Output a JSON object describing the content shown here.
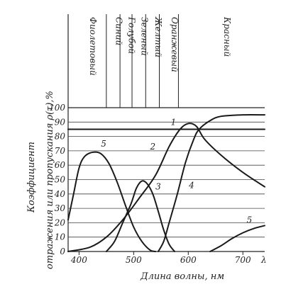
{
  "chart_data": {
    "type": "line",
    "xlabel": "Длина волны, нм",
    "ylabel_line1": "Коэффициент",
    "ylabel_line2": "отражения или пропускания ρ(τ),%",
    "x_end_label": "λ",
    "xlim": [
      380,
      740
    ],
    "ylim": [
      0,
      100
    ],
    "xticks": [
      {
        "value": 400,
        "label": "400"
      },
      {
        "value": 500,
        "label": "500"
      },
      {
        "value": 600,
        "label": "600"
      },
      {
        "value": 700,
        "label": "700"
      }
    ],
    "yticks": [
      {
        "value": 0,
        "label": "0"
      },
      {
        "value": 10,
        "label": "10"
      },
      {
        "value": 20,
        "label": "20"
      },
      {
        "value": 30,
        "label": "30"
      },
      {
        "value": 40,
        "label": "40"
      },
      {
        "value": 50,
        "label": "50"
      },
      {
        "value": 60,
        "label": "60"
      },
      {
        "value": 70,
        "label": "70"
      },
      {
        "value": 80,
        "label": "80"
      },
      {
        "value": 90,
        "label": "90"
      },
      {
        "value": 100,
        "label": "100"
      }
    ],
    "color_bands": [
      {
        "label": "Фиолетовый",
        "from": 380,
        "to": 450
      },
      {
        "label": "Синий",
        "from": 450,
        "to": 475
      },
      {
        "label": "Голубой",
        "from": 475,
        "to": 497
      },
      {
        "label": "Зеленый",
        "from": 497,
        "to": 522
      },
      {
        "label": "Желтый",
        "from": 522,
        "to": 547
      },
      {
        "label": "Оранжевый",
        "from": 547,
        "to": 582
      },
      {
        "label": "Красный",
        "from": 582,
        "to": 740
      }
    ],
    "series": [
      {
        "name": "1",
        "label_at": {
          "x": 573,
          "y": 88
        },
        "points": [
          [
            380,
            85
          ],
          [
            740,
            85
          ]
        ]
      },
      {
        "name": "2",
        "label_at": {
          "x": 535,
          "y": 71
        },
        "points": [
          [
            380,
            0
          ],
          [
            420,
            3
          ],
          [
            450,
            10
          ],
          [
            480,
            22
          ],
          [
            510,
            37
          ],
          [
            540,
            53
          ],
          [
            565,
            73
          ],
          [
            585,
            85
          ],
          [
            600,
            89
          ],
          [
            615,
            87
          ],
          [
            630,
            78
          ],
          [
            660,
            67
          ],
          [
            700,
            55
          ],
          [
            740,
            45
          ]
        ]
      },
      {
        "name": "3",
        "label_at": {
          "x": 545,
          "y": 43
        },
        "points": [
          [
            450,
            0
          ],
          [
            465,
            7
          ],
          [
            480,
            20
          ],
          [
            495,
            33
          ],
          [
            505,
            44
          ],
          [
            515,
            49
          ],
          [
            525,
            47
          ],
          [
            535,
            40
          ],
          [
            545,
            28
          ],
          [
            555,
            15
          ],
          [
            565,
            5
          ],
          [
            575,
            0
          ]
        ]
      },
      {
        "name": "4",
        "label_at": {
          "x": 606,
          "y": 44
        },
        "points": [
          [
            545,
            0
          ],
          [
            555,
            7
          ],
          [
            565,
            20
          ],
          [
            580,
            40
          ],
          [
            595,
            62
          ],
          [
            610,
            78
          ],
          [
            620,
            85
          ],
          [
            640,
            91
          ],
          [
            660,
            94
          ],
          [
            700,
            95
          ],
          [
            740,
            95
          ]
        ]
      },
      {
        "name": "5",
        "label_at": {
          "x": 445,
          "y": 73
        },
        "points": [
          [
            380,
            22
          ],
          [
            390,
            40
          ],
          [
            400,
            58
          ],
          [
            410,
            66
          ],
          [
            425,
            69
          ],
          [
            440,
            68
          ],
          [
            455,
            61
          ],
          [
            470,
            48
          ],
          [
            485,
            32
          ],
          [
            500,
            17
          ],
          [
            515,
            7
          ],
          [
            530,
            1
          ],
          [
            540,
            0
          ]
        ]
      },
      {
        "name": "5",
        "label_at": {
          "x": 712,
          "y": 20
        },
        "points": [
          [
            640,
            0
          ],
          [
            660,
            4
          ],
          [
            680,
            9
          ],
          [
            700,
            13
          ],
          [
            720,
            16
          ],
          [
            740,
            18
          ]
        ]
      }
    ]
  }
}
